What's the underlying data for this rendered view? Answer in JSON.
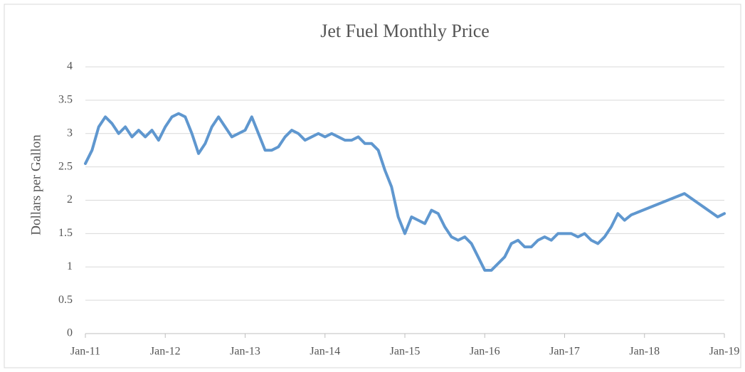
{
  "chart_data": {
    "type": "line",
    "title": "Jet Fuel Monthly Price",
    "y_label": "Dollars per Gallon",
    "categories": [
      "Jan-11",
      null,
      null,
      null,
      null,
      null,
      null,
      null,
      null,
      null,
      null,
      null,
      "Jan-12",
      null,
      null,
      null,
      null,
      null,
      null,
      null,
      null,
      null,
      null,
      null,
      "Jan-13",
      null,
      null,
      null,
      null,
      null,
      null,
      null,
      null,
      null,
      null,
      null,
      "Jan-14",
      null,
      null,
      null,
      null,
      null,
      null,
      null,
      null,
      null,
      null,
      null,
      "Jan-15",
      null,
      null,
      null,
      null,
      null,
      null,
      null,
      null,
      null,
      null,
      null,
      "Jan-16",
      null,
      null,
      null,
      null,
      null,
      null,
      null,
      null,
      null,
      null,
      null,
      "Jan-17",
      null,
      null,
      null,
      null,
      null,
      null,
      null,
      null,
      null,
      null,
      null,
      "Jan-18",
      null,
      null,
      null,
      null,
      null,
      null,
      null,
      null,
      null,
      null,
      null,
      "Jan-19"
    ],
    "values": [
      2.55,
      2.75,
      3.1,
      3.25,
      3.15,
      3.0,
      3.1,
      2.95,
      3.05,
      2.95,
      3.05,
      2.9,
      3.1,
      3.25,
      3.3,
      3.25,
      3.0,
      2.7,
      2.85,
      3.1,
      3.25,
      3.1,
      2.95,
      3.0,
      3.05,
      3.25,
      3.0,
      2.75,
      2.75,
      2.8,
      2.95,
      3.05,
      3.0,
      2.9,
      2.95,
      3.0,
      2.95,
      3.0,
      2.95,
      2.9,
      2.9,
      2.95,
      2.85,
      2.85,
      2.75,
      2.45,
      2.2,
      1.75,
      1.5,
      1.75,
      1.7,
      1.65,
      1.85,
      1.8,
      1.6,
      1.45,
      1.4,
      1.45,
      1.35,
      1.15,
      0.95,
      0.95,
      1.05,
      1.15,
      1.35,
      1.4,
      1.3,
      1.3,
      1.4,
      1.45,
      1.4,
      1.5,
      1.5,
      1.5,
      1.45,
      1.5,
      1.4,
      1.35,
      1.45,
      1.6,
      1.8,
      1.7,
      1.78,
      1.82,
      1.86,
      1.9,
      1.94,
      1.98,
      2.02,
      2.06,
      2.1,
      2.03,
      1.96,
      1.89,
      1.82,
      1.75,
      1.8
    ],
    "color": "#5f97cf",
    "ylim": [
      0,
      4
    ],
    "yticks": [
      0,
      0.5,
      1,
      1.5,
      2,
      2.5,
      3,
      3.5,
      4
    ],
    "grid": true
  }
}
